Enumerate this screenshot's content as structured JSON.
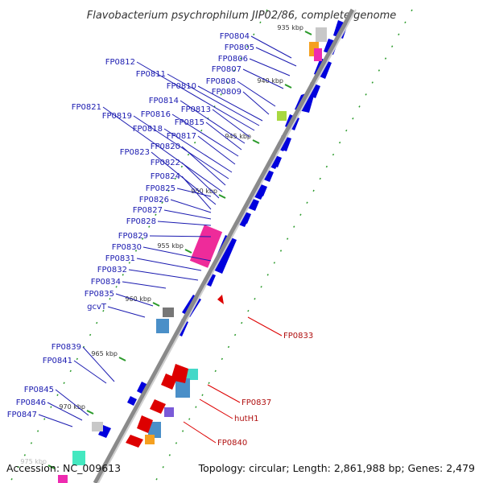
{
  "title": "Flavobacterium psychrophilum JIP02/86, complete genome",
  "accession": "Accession: NC_009613",
  "summary": "Topology: circular; Length: 2,861,988 bp; Genes: 2,479",
  "colors": {
    "forward_cds": "#0000dd",
    "reverse_cds": "#dd0000",
    "backbone": "#8a8a8a",
    "tick": "#2a9a2a",
    "label_blue": "#1a1ab0",
    "label_red": "#b01010"
  },
  "scale_ticks": [
    {
      "kbp": 935,
      "label": "935 kbp"
    },
    {
      "kbp": 940,
      "label": "940 kbp"
    },
    {
      "kbp": 945,
      "label": "945 kbp"
    },
    {
      "kbp": 950,
      "label": "950 kbp"
    },
    {
      "kbp": 955,
      "label": "955 kbp"
    },
    {
      "kbp": 960,
      "label": "960 kbp"
    },
    {
      "kbp": 965,
      "label": "965 kbp"
    },
    {
      "kbp": 970,
      "label": "970 kbp"
    },
    {
      "kbp": 975,
      "label": "975 kbp"
    }
  ],
  "left_labels": [
    "FP0804",
    "FP0805",
    "FP0806",
    "FP0807",
    "FP0808",
    "FP0809",
    "FP0810",
    "FP0811",
    "FP0812",
    "FP0813",
    "FP0814",
    "FP0815",
    "FP0816",
    "FP0817",
    "FP0818",
    "FP0819",
    "FP0820",
    "FP0821",
    "FP0822",
    "FP0823",
    "FP0824",
    "FP0825",
    "FP0826",
    "FP0827",
    "FP0828",
    "FP0829",
    "FP0830",
    "FP0831",
    "FP0832",
    "FP0834",
    "FP0835",
    "gcvT",
    "FP0839",
    "FP0841",
    "FP0845",
    "FP0846",
    "FP0847"
  ],
  "right_labels": [
    "FP0833",
    "FP0837",
    "hutH1",
    "FP0840"
  ]
}
